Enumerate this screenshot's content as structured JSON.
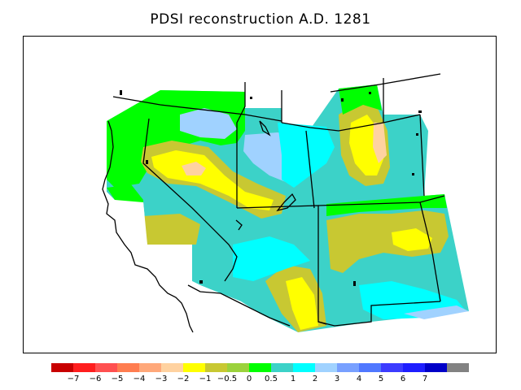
{
  "title": "PDSI reconstruction A.D. 1281",
  "colorbar": {
    "colors": [
      "#c80000",
      "#ff1e1e",
      "#ff5050",
      "#ff7d50",
      "#ffa87a",
      "#ffd2a0",
      "#ffff00",
      "#c8c832",
      "#9bd23c",
      "#00ff00",
      "#3cd2c8",
      "#00ffff",
      "#a0d2ff",
      "#78a0ff",
      "#5078ff",
      "#3c3cff",
      "#1e1eff",
      "#0000c8",
      "#828282"
    ],
    "ticks": [
      "−7",
      "−6",
      "−5",
      "−4",
      "−3",
      "−2",
      "−1",
      "−0.5",
      "0",
      "0.5",
      "1",
      "2",
      "3",
      "4",
      "5",
      "6",
      "7"
    ]
  },
  "map_colors": {
    "wet_mid": "#00ffff",
    "near_normal": "#3cd2c8",
    "slight_wet": "#00ff00",
    "slight_dry": "#c8c832",
    "dry": "#ffff00",
    "very_dry": "#ffd2a0",
    "wet": "#a0d2ff",
    "water": "#ffffff"
  }
}
